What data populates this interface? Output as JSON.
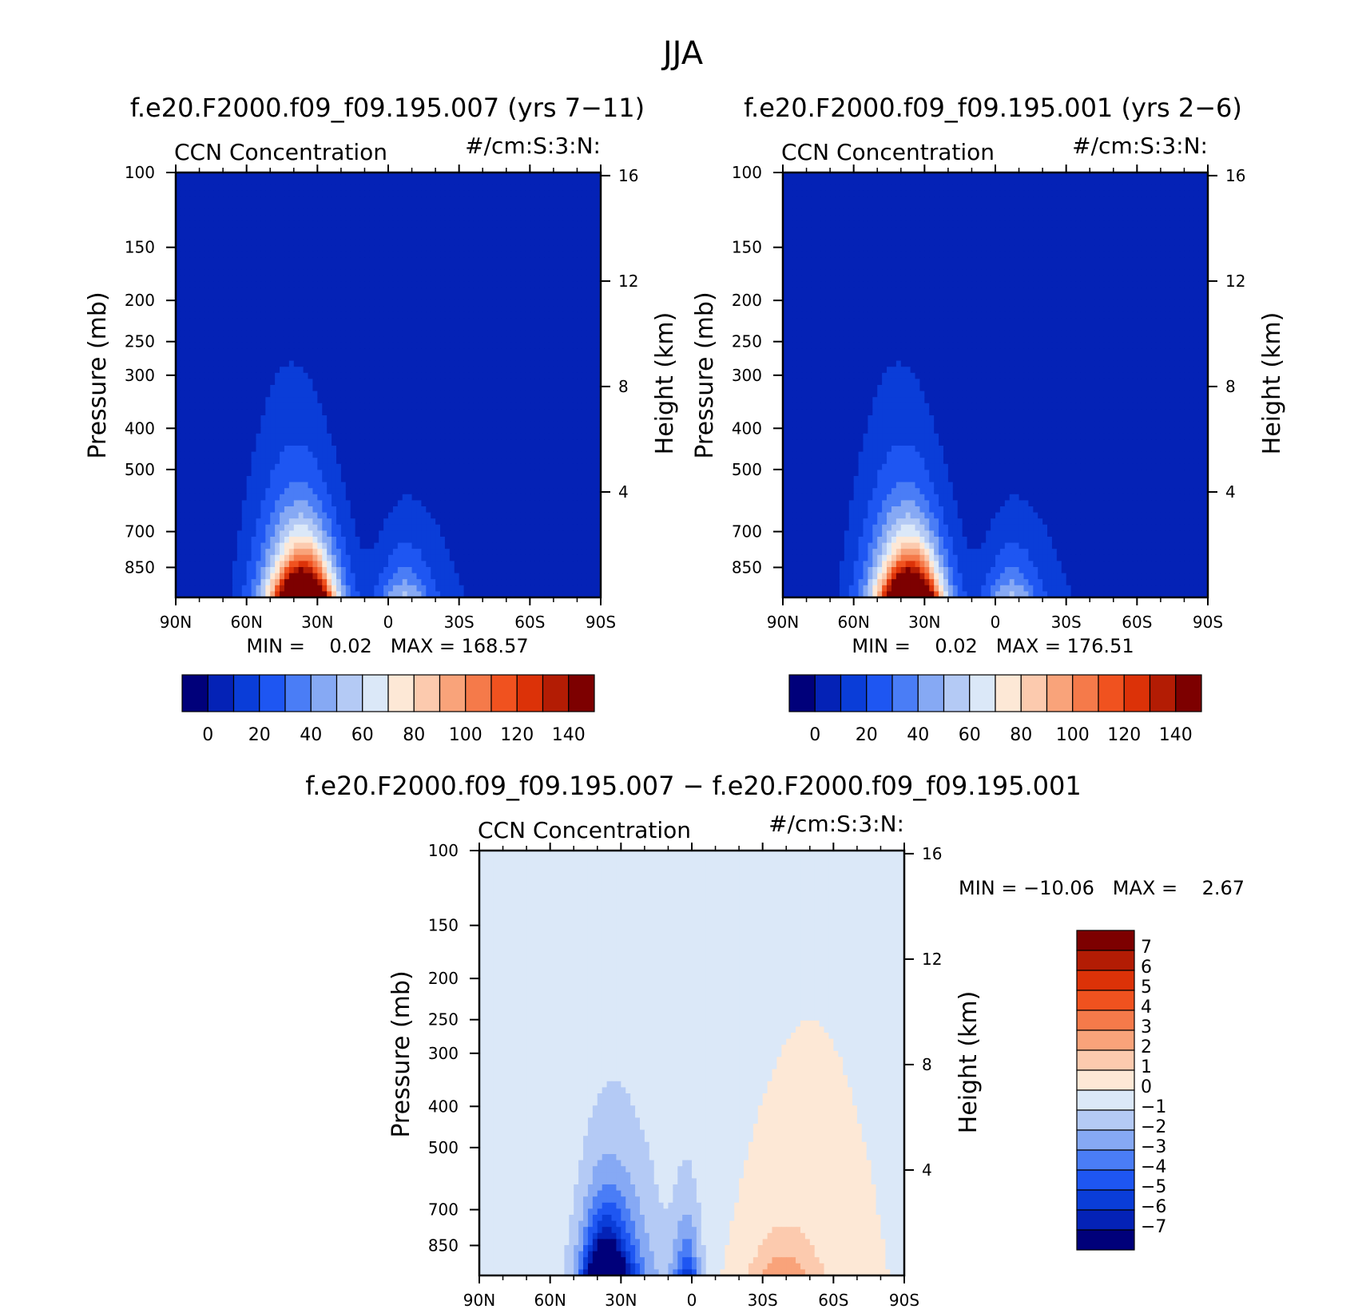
{
  "figure": {
    "title": "JJA"
  },
  "panels": [
    {
      "title": "f.e20.F2000.f09_f09.195.007 (yrs 7−11)",
      "variable": "CCN Concentration",
      "units": "#/cm:S:3:N:",
      "ylabel_left": "Pressure (mb)",
      "ylabel_right": "Height (km)",
      "stats": "MIN =    0.02   MAX = 168.57"
    },
    {
      "title": "f.e20.F2000.f09_f09.195.001 (yrs 2−6)",
      "variable": "CCN Concentration",
      "units": "#/cm:S:3:N:",
      "ylabel_left": "Pressure (mb)",
      "ylabel_right": "Height (km)",
      "stats": "MIN =    0.02   MAX = 176.51"
    },
    {
      "title": "f.e20.F2000.f09_f09.195.007 − f.e20.F2000.f09_f09.195.001",
      "variable": "CCN Concentration",
      "units": "#/cm:S:3:N:",
      "ylabel_left": "Pressure (mb)",
      "ylabel_right": "Height (km)",
      "stats": "MIN = −10.06   MAX =    2.67"
    }
  ],
  "chart_data": [
    {
      "type": "heatmap",
      "title": "f.e20.F2000.f09_f09.195.007 (yrs 7−11)",
      "x_ticks": [
        "90N",
        "60N",
        "30N",
        "0",
        "30S",
        "60S",
        "90S"
      ],
      "x_range": [
        90,
        -90
      ],
      "y_ticks_pressure": [
        "100",
        "150",
        "200",
        "250",
        "300",
        "400",
        "500",
        "700",
        "850"
      ],
      "y_ticks_height_km": [
        "16",
        "12",
        "8",
        "4"
      ],
      "y_scale": "log",
      "ylim": [
        100,
        1000
      ],
      "levels": [
        0,
        10,
        20,
        30,
        40,
        50,
        60,
        70,
        80,
        90,
        100,
        110,
        120,
        130,
        140
      ],
      "colorbar_labels": [
        "0",
        "20",
        "40",
        "60",
        "80",
        "100",
        "120",
        "140"
      ],
      "colors": [
        "#00007a",
        "#0422b6",
        "#0a3dd8",
        "#1e56f2",
        "#4a7df6",
        "#86a9f4",
        "#b4caf5",
        "#dbe8f8",
        "#fde8d6",
        "#fccaae",
        "#f9a37a",
        "#f57a4a",
        "#f0521f",
        "#dc3208",
        "#b31c04",
        "#7d0000"
      ],
      "min": 0.02,
      "max": 168.57,
      "max_location": {
        "lat": 36,
        "pressure": 950
      }
    },
    {
      "type": "heatmap",
      "title": "f.e20.F2000.f09_f09.195.001 (yrs 2−6)",
      "x_ticks": [
        "90N",
        "60N",
        "30N",
        "0",
        "30S",
        "60S",
        "90S"
      ],
      "x_range": [
        90,
        -90
      ],
      "y_ticks_pressure": [
        "100",
        "150",
        "200",
        "250",
        "300",
        "400",
        "500",
        "700",
        "850"
      ],
      "y_ticks_height_km": [
        "16",
        "12",
        "8",
        "4"
      ],
      "y_scale": "log",
      "ylim": [
        100,
        1000
      ],
      "levels": [
        0,
        10,
        20,
        30,
        40,
        50,
        60,
        70,
        80,
        90,
        100,
        110,
        120,
        130,
        140
      ],
      "colorbar_labels": [
        "0",
        "20",
        "40",
        "60",
        "80",
        "100",
        "120",
        "140"
      ],
      "colors": [
        "#00007a",
        "#0422b6",
        "#0a3dd8",
        "#1e56f2",
        "#4a7df6",
        "#86a9f4",
        "#b4caf5",
        "#dbe8f8",
        "#fde8d6",
        "#fccaae",
        "#f9a37a",
        "#f57a4a",
        "#f0521f",
        "#dc3208",
        "#b31c04",
        "#7d0000"
      ],
      "min": 0.02,
      "max": 176.51,
      "max_location": {
        "lat": 36,
        "pressure": 950
      }
    },
    {
      "type": "heatmap",
      "title": "f.e20.F2000.f09_f09.195.007 − f.e20.F2000.f09_f09.195.001",
      "x_ticks": [
        "90N",
        "60N",
        "30N",
        "0",
        "30S",
        "60S",
        "90S"
      ],
      "x_range": [
        90,
        -90
      ],
      "y_ticks_pressure": [
        "100",
        "150",
        "200",
        "250",
        "300",
        "400",
        "500",
        "700",
        "850"
      ],
      "y_ticks_height_km": [
        "16",
        "12",
        "8",
        "4"
      ],
      "y_scale": "log",
      "ylim": [
        100,
        1000
      ],
      "levels": [
        -7,
        -6,
        -5,
        -4,
        -3,
        -2,
        -1,
        0,
        1,
        2,
        3,
        4,
        5,
        6,
        7
      ],
      "colorbar_labels": [
        "7",
        "6",
        "5",
        "4",
        "3",
        "2",
        "1",
        "0",
        "−1",
        "−2",
        "−3",
        "−4",
        "−5",
        "−6",
        "−7"
      ],
      "colors": [
        "#00007a",
        "#0422b6",
        "#0a3dd8",
        "#1e56f2",
        "#4a7df6",
        "#86a9f4",
        "#b4caf5",
        "#dbe8f8",
        "#fde8d6",
        "#fccaae",
        "#f9a37a",
        "#f57a4a",
        "#f0521f",
        "#dc3208",
        "#b31c04",
        "#7d0000"
      ],
      "min": -10.06,
      "max": 2.67
    }
  ]
}
